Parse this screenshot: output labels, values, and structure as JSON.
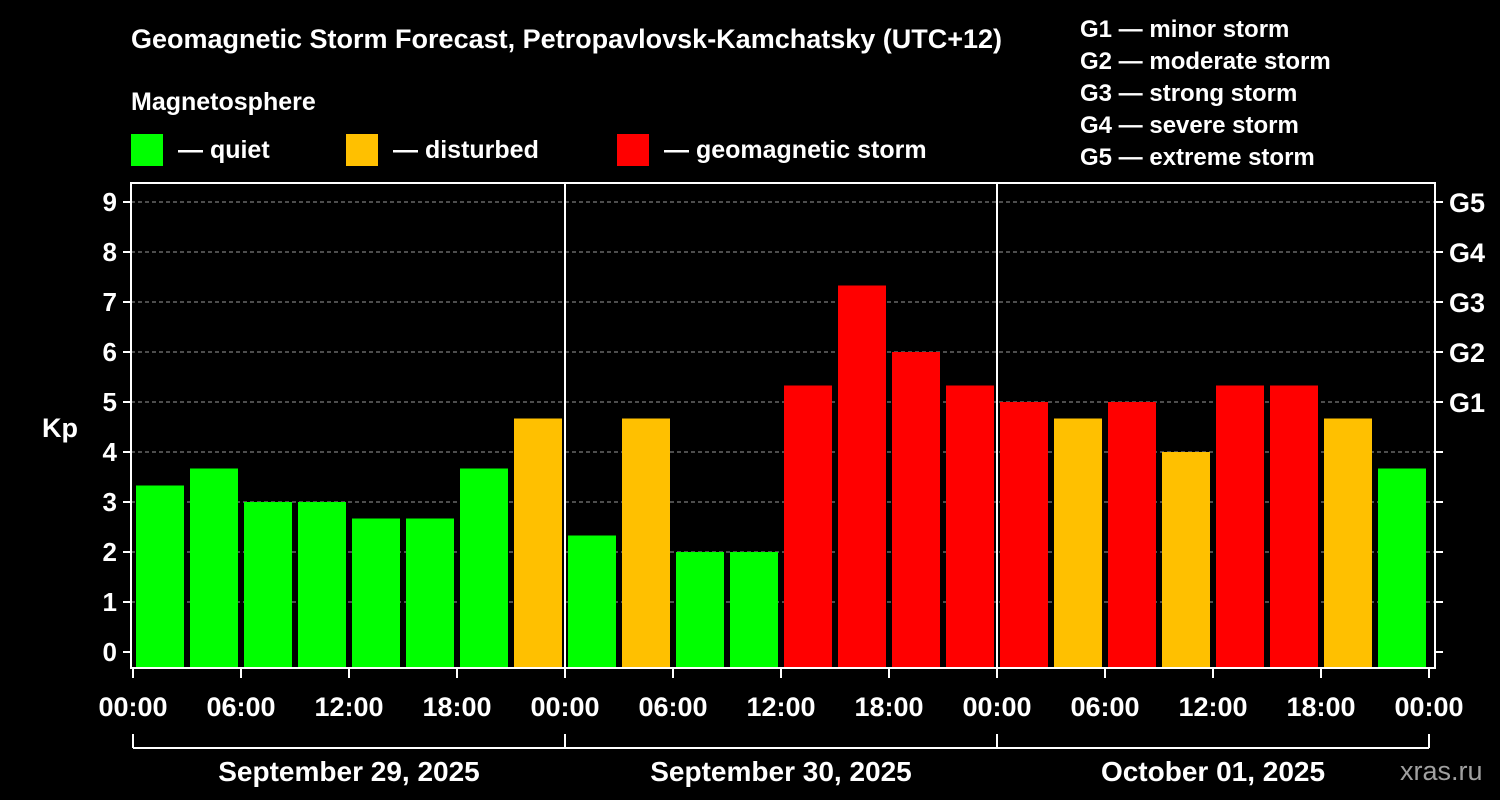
{
  "title": "Geomagnetic Storm Forecast, Petropavlovsk-Kamchatsky (UTC+12)",
  "legend": {
    "heading": "Magnetosphere",
    "items": [
      {
        "label": "— quiet",
        "color": "#00ff00"
      },
      {
        "label": "— disturbed",
        "color": "#ffc000"
      },
      {
        "label": "— geomagnetic storm",
        "color": "#ff0000"
      }
    ]
  },
  "storm_scale": [
    "G1 — minor storm",
    "G2 — moderate storm",
    "G3 — strong storm",
    "G4 — severe storm",
    "G5 — extreme storm"
  ],
  "watermark": "xras.ru",
  "chart_data": {
    "type": "bar",
    "ylabel": "Kp",
    "ylim": [
      0,
      9
    ],
    "y_ticks": [
      0,
      1,
      2,
      3,
      4,
      5,
      6,
      7,
      8,
      9
    ],
    "right_axis_labels": [
      {
        "kp": 5,
        "label": "G1"
      },
      {
        "kp": 6,
        "label": "G2"
      },
      {
        "kp": 7,
        "label": "G3"
      },
      {
        "kp": 8,
        "label": "G4"
      },
      {
        "kp": 9,
        "label": "G5"
      }
    ],
    "x_tick_labels": [
      "00:00",
      "06:00",
      "12:00",
      "18:00",
      "00:00",
      "06:00",
      "12:00",
      "18:00",
      "00:00",
      "06:00",
      "12:00",
      "18:00",
      "00:00"
    ],
    "days": [
      "September 29, 2025",
      "September 30, 2025",
      "October 01, 2025"
    ],
    "grid": "dashed horizontal at integer Kp",
    "bars_per_day": 8,
    "values": [
      3.33,
      3.67,
      3.0,
      3.0,
      2.67,
      2.67,
      3.67,
      4.67,
      2.33,
      4.67,
      2.0,
      2.0,
      5.33,
      7.33,
      6.0,
      5.33,
      5.0,
      4.67,
      5.0,
      4.0,
      5.33,
      5.33,
      4.67,
      3.67
    ],
    "status": [
      "quiet",
      "quiet",
      "quiet",
      "quiet",
      "quiet",
      "quiet",
      "quiet",
      "disturbed",
      "quiet",
      "disturbed",
      "quiet",
      "quiet",
      "storm",
      "storm",
      "storm",
      "storm",
      "storm",
      "disturbed",
      "storm",
      "disturbed",
      "storm",
      "storm",
      "disturbed",
      "quiet"
    ],
    "colors": {
      "quiet": "#00ff00",
      "disturbed": "#ffc000",
      "storm": "#ff0000"
    }
  }
}
